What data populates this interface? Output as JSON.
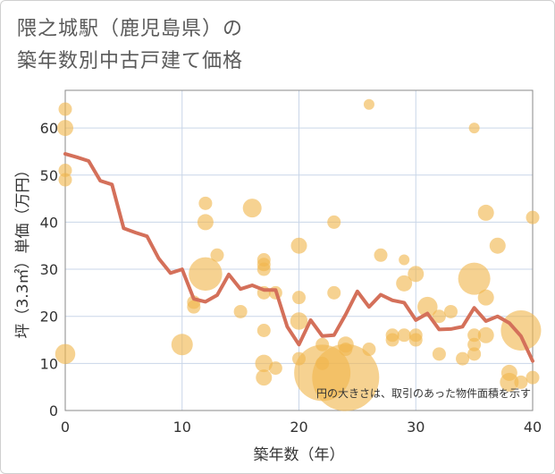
{
  "title_line1": "隈之城駅（鹿児島県）の",
  "title_line2": "築年数別中古戸建て価格",
  "chart_data": {
    "type": "scatter",
    "xlabel": "築年数（年）",
    "ylabel": "坪（3.3㎡）単価（万円）",
    "xlim": [
      0,
      40
    ],
    "ylim": [
      0,
      68
    ],
    "xticks": [
      0,
      10,
      20,
      30,
      40
    ],
    "yticks": [
      0,
      10,
      20,
      30,
      40,
      50,
      60
    ],
    "grid": true,
    "note": "円の大きさは、取引のあった物件面積を示す",
    "colors": {
      "bubble": "#f0b64e",
      "line": "#d4705a",
      "grid": "#c9d6e8"
    },
    "bubbles": [
      {
        "x": 0,
        "y": 64,
        "s": 1
      },
      {
        "x": 0,
        "y": 60,
        "s": 1.2
      },
      {
        "x": 0,
        "y": 51,
        "s": 1
      },
      {
        "x": 0,
        "y": 49,
        "s": 1
      },
      {
        "x": 0,
        "y": 12,
        "s": 1.5
      },
      {
        "x": 10,
        "y": 14,
        "s": 1.6
      },
      {
        "x": 11,
        "y": 22,
        "s": 1
      },
      {
        "x": 11,
        "y": 23,
        "s": 1
      },
      {
        "x": 12,
        "y": 44,
        "s": 1
      },
      {
        "x": 12,
        "y": 40,
        "s": 1.2
      },
      {
        "x": 12,
        "y": 29,
        "s": 2.5
      },
      {
        "x": 13,
        "y": 33,
        "s": 1
      },
      {
        "x": 15,
        "y": 21,
        "s": 1
      },
      {
        "x": 16,
        "y": 43,
        "s": 1.4
      },
      {
        "x": 17,
        "y": 32,
        "s": 1
      },
      {
        "x": 17,
        "y": 31,
        "s": 1
      },
      {
        "x": 17,
        "y": 30,
        "s": 1
      },
      {
        "x": 17,
        "y": 25,
        "s": 1
      },
      {
        "x": 17,
        "y": 17,
        "s": 1
      },
      {
        "x": 17,
        "y": 10,
        "s": 1.3
      },
      {
        "x": 17,
        "y": 7,
        "s": 1.2
      },
      {
        "x": 18,
        "y": 25,
        "s": 1
      },
      {
        "x": 18,
        "y": 9,
        "s": 1
      },
      {
        "x": 20,
        "y": 35,
        "s": 1.2
      },
      {
        "x": 20,
        "y": 24,
        "s": 1
      },
      {
        "x": 20,
        "y": 19,
        "s": 1.3
      },
      {
        "x": 20,
        "y": 11,
        "s": 1
      },
      {
        "x": 22,
        "y": 14,
        "s": 1
      },
      {
        "x": 22,
        "y": 10,
        "s": 1
      },
      {
        "x": 22,
        "y": 8,
        "s": 4.2
      },
      {
        "x": 23,
        "y": 40,
        "s": 1
      },
      {
        "x": 23,
        "y": 25,
        "s": 1
      },
      {
        "x": 24,
        "y": 14,
        "s": 1.2
      },
      {
        "x": 24,
        "y": 13,
        "s": 1
      },
      {
        "x": 24,
        "y": 7,
        "s": 5
      },
      {
        "x": 26,
        "y": 65,
        "s": 0.8
      },
      {
        "x": 26,
        "y": 13,
        "s": 1
      },
      {
        "x": 27,
        "y": 33,
        "s": 1
      },
      {
        "x": 28,
        "y": 16,
        "s": 1
      },
      {
        "x": 28,
        "y": 15,
        "s": 1
      },
      {
        "x": 29,
        "y": 32,
        "s": 0.8
      },
      {
        "x": 29,
        "y": 27,
        "s": 1.2
      },
      {
        "x": 29,
        "y": 16,
        "s": 1
      },
      {
        "x": 30,
        "y": 29,
        "s": 1.2
      },
      {
        "x": 30,
        "y": 16,
        "s": 1
      },
      {
        "x": 30,
        "y": 15,
        "s": 1
      },
      {
        "x": 31,
        "y": 22,
        "s": 1.5
      },
      {
        "x": 32,
        "y": 20,
        "s": 1
      },
      {
        "x": 32,
        "y": 12,
        "s": 1
      },
      {
        "x": 33,
        "y": 21,
        "s": 1
      },
      {
        "x": 34,
        "y": 11,
        "s": 1
      },
      {
        "x": 35,
        "y": 60,
        "s": 0.8
      },
      {
        "x": 35,
        "y": 28,
        "s": 2.4
      },
      {
        "x": 35,
        "y": 16,
        "s": 1
      },
      {
        "x": 35,
        "y": 14,
        "s": 1
      },
      {
        "x": 35,
        "y": 12,
        "s": 1
      },
      {
        "x": 36,
        "y": 42,
        "s": 1.2
      },
      {
        "x": 36,
        "y": 24,
        "s": 1.2
      },
      {
        "x": 36,
        "y": 16,
        "s": 1.2
      },
      {
        "x": 37,
        "y": 35,
        "s": 1.2
      },
      {
        "x": 38,
        "y": 8,
        "s": 1.2
      },
      {
        "x": 38,
        "y": 6,
        "s": 1.4
      },
      {
        "x": 39,
        "y": 17,
        "s": 3
      },
      {
        "x": 39,
        "y": 6,
        "s": 1
      },
      {
        "x": 40,
        "y": 41,
        "s": 1
      },
      {
        "x": 40,
        "y": 7,
        "s": 1
      }
    ],
    "trend": {
      "name": "",
      "x": [
        0,
        1,
        2,
        3,
        4,
        5,
        6,
        7,
        8,
        9,
        10,
        11,
        12,
        13,
        14,
        15,
        16,
        17,
        18,
        19,
        20,
        21,
        22,
        23,
        24,
        25,
        26,
        27,
        28,
        29,
        30,
        31,
        32,
        33,
        34,
        35,
        36,
        37,
        38,
        39,
        40
      ],
      "y": [
        54.5,
        53.8,
        53,
        48.8,
        48,
        38.7,
        37.8,
        37,
        32.3,
        29.2,
        30,
        23.7,
        23.1,
        24.5,
        28.9,
        25.8,
        26.6,
        25.6,
        25.6,
        17.8,
        14,
        19.2,
        15.8,
        16,
        20.4,
        25.3,
        22,
        24.6,
        23.4,
        22.9,
        19.2,
        20.6,
        17.2,
        17.3,
        17.8,
        21.8,
        19,
        20,
        18.6,
        15.8,
        10.5
      ]
    }
  }
}
